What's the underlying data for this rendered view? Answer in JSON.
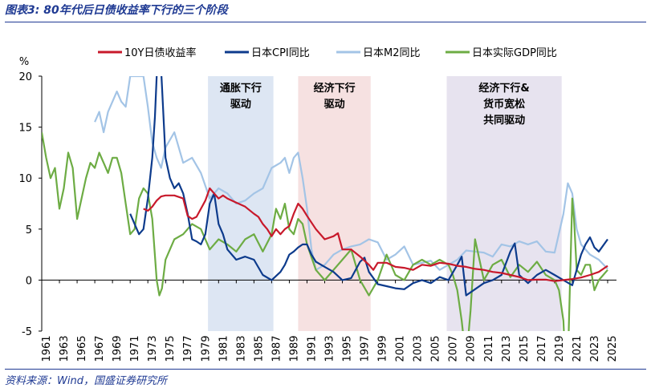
{
  "header": {
    "title": "图表3:  80年代后日债收益率下行的三个阶段"
  },
  "footer": {
    "source": "资料来源：Wind，国盛证券研究所"
  },
  "chart_data": {
    "type": "line",
    "ylabel": "%",
    "ylim": [
      -5,
      20
    ],
    "yticks": [
      -5,
      0,
      5,
      10,
      15,
      20
    ],
    "xlim": [
      1961,
      2026
    ],
    "xticks": [
      1961,
      1963,
      1965,
      1967,
      1969,
      1971,
      1973,
      1975,
      1977,
      1979,
      1981,
      1983,
      1985,
      1987,
      1989,
      1991,
      1993,
      1995,
      1997,
      1999,
      2001,
      2003,
      2005,
      2007,
      2009,
      2011,
      2013,
      2015,
      2017,
      2019,
      2021,
      2023,
      2025
    ],
    "legend_position": "top",
    "grid": false,
    "shaded_periods": [
      {
        "label_lines": [
          "通胀下行",
          "驱动"
        ],
        "start": 1979.8,
        "end": 1987.2,
        "color": "#dde6f3"
      },
      {
        "label_lines": [
          "经济下行",
          "驱动"
        ],
        "start": 1990.0,
        "end": 1998.2,
        "color": "#f6e1e1"
      },
      {
        "label_lines": [
          "经济下行&",
          "货币宽松",
          "共同驱动"
        ],
        "start": 2006.8,
        "end": 2019.8,
        "color": "#e7e3ef"
      }
    ],
    "series": [
      {
        "name": "10Y日债收益率",
        "color": "#c8192b",
        "x": [
          1972.5,
          1973,
          1973.5,
          1974,
          1974.5,
          1975,
          1976,
          1977,
          1977.5,
          1978,
          1978.5,
          1979,
          1979.5,
          1980,
          1980.5,
          1981,
          1981.5,
          1982,
          1983,
          1984,
          1985,
          1985.5,
          1986,
          1986.5,
          1987,
          1987.5,
          1988,
          1988.5,
          1989,
          1989.5,
          1990,
          1990.5,
          1991,
          1992,
          1993,
          1994,
          1994.5,
          1995,
          1996,
          1997,
          1998,
          1998.5,
          1999,
          2000,
          2001,
          2002,
          2003,
          2004,
          2005,
          2006,
          2007,
          2008,
          2009,
          2010,
          2011,
          2012,
          2013,
          2014,
          2015,
          2016,
          2017,
          2018,
          2019,
          2020,
          2021,
          2022,
          2023,
          2024,
          2025
        ],
        "y": [
          7.0,
          6.8,
          7.2,
          7.8,
          8.2,
          8.3,
          8.3,
          8.0,
          6.3,
          6.0,
          6.2,
          7.0,
          7.8,
          9.0,
          8.5,
          8.0,
          8.3,
          8.0,
          7.6,
          7.2,
          6.5,
          6.2,
          5.5,
          5.0,
          4.3,
          5.0,
          4.5,
          5.0,
          5.3,
          6.5,
          7.5,
          7.0,
          6.3,
          5.0,
          4.0,
          4.3,
          4.6,
          3.0,
          3.0,
          2.3,
          1.5,
          1.0,
          1.7,
          1.7,
          1.3,
          1.2,
          1.0,
          1.5,
          1.4,
          1.7,
          1.6,
          1.4,
          1.3,
          1.1,
          1.0,
          0.8,
          0.7,
          0.5,
          0.3,
          0.0,
          0.05,
          0.05,
          -0.1,
          0.0,
          0.1,
          0.25,
          0.5,
          0.8,
          1.4
        ]
      },
      {
        "name": "日本CPI同比",
        "color": "#0d3b8c",
        "x": [
          1971,
          1971.5,
          1972,
          1972.5,
          1973,
          1973.5,
          1973.8,
          1974,
          1974.3,
          1974.6,
          1975,
          1975.5,
          1976,
          1976.5,
          1977,
          1977.5,
          1978,
          1978.5,
          1979,
          1979.5,
          1980,
          1980.5,
          1981,
          1981.5,
          1982,
          1983,
          1984,
          1985,
          1986,
          1987,
          1988,
          1988.5,
          1989,
          1989.5,
          1990,
          1990.5,
          1991,
          1991.5,
          1992,
          1993,
          1994,
          1995,
          1996,
          1997,
          1997.5,
          1998,
          1999,
          2000,
          2001,
          2002,
          2003,
          2004,
          2005,
          2006,
          2007,
          2008,
          2008.5,
          2009,
          2010,
          2011,
          2012,
          2013,
          2014,
          2014.5,
          2015,
          2016,
          2017,
          2018,
          2019,
          2020,
          2021,
          2022,
          2022.5,
          2023,
          2023.5,
          2024,
          2025
        ],
        "y": [
          6.5,
          5.5,
          4.5,
          5.0,
          8.0,
          12.0,
          16.0,
          20.0,
          24.0,
          19.0,
          12.0,
          10.0,
          9.0,
          9.5,
          8.5,
          6.5,
          4.0,
          3.8,
          3.5,
          4.5,
          7.5,
          8.5,
          5.5,
          4.5,
          3.0,
          2.0,
          2.3,
          2.0,
          0.5,
          0.0,
          0.8,
          1.5,
          2.5,
          2.8,
          3.2,
          3.5,
          3.5,
          2.5,
          1.8,
          1.3,
          0.8,
          0.0,
          0.2,
          1.8,
          2.2,
          0.8,
          -0.4,
          -0.6,
          -0.8,
          -0.9,
          -0.3,
          0.0,
          -0.3,
          0.3,
          0.0,
          1.5,
          2.3,
          -1.5,
          -0.9,
          -0.3,
          0.0,
          0.5,
          2.8,
          3.6,
          0.5,
          -0.3,
          0.5,
          1.0,
          0.5,
          0.0,
          -0.5,
          2.5,
          3.5,
          4.2,
          3.2,
          2.8,
          4.0
        ]
      },
      {
        "name": "日本M2同比",
        "color": "#a3c4e6",
        "x": [
          1967,
          1967.5,
          1968,
          1968.5,
          1969,
          1969.5,
          1970,
          1970.5,
          1971,
          1971.5,
          1972,
          1972.5,
          1973,
          1973.5,
          1974,
          1974.5,
          1975,
          1976,
          1977,
          1978,
          1979,
          1980,
          1981,
          1982,
          1983,
          1984,
          1985,
          1986,
          1987,
          1988,
          1988.5,
          1989,
          1989.5,
          1990,
          1990.5,
          1991,
          1991.5,
          1992,
          1993,
          1994,
          1995,
          1996,
          1997,
          1998,
          1999,
          2000,
          2001,
          2002,
          2003,
          2004,
          2005,
          2006,
          2007,
          2008,
          2009,
          2010,
          2011,
          2012,
          2013,
          2014,
          2015,
          2016,
          2017,
          2018,
          2019,
          2020,
          2020.5,
          2021,
          2021.5,
          2022,
          2023,
          2024,
          2025
        ],
        "y": [
          15.5,
          16.5,
          14.5,
          16.5,
          17.5,
          18.5,
          17.5,
          17.0,
          20.0,
          20.0,
          20.0,
          20.0,
          17.0,
          13.5,
          12.0,
          11.0,
          13.0,
          14.5,
          11.5,
          12.0,
          10.5,
          8.0,
          9.0,
          8.5,
          7.5,
          7.8,
          8.5,
          9.0,
          11.0,
          11.5,
          12.0,
          10.5,
          12.0,
          12.5,
          10.0,
          7.0,
          3.0,
          1.0,
          1.5,
          2.5,
          3.0,
          3.3,
          3.5,
          4.0,
          3.7,
          2.0,
          2.5,
          3.3,
          1.5,
          1.7,
          1.9,
          1.0,
          1.5,
          2.0,
          2.9,
          2.8,
          2.7,
          2.3,
          3.5,
          3.3,
          3.8,
          3.5,
          3.8,
          2.8,
          2.7,
          6.5,
          9.5,
          8.5,
          5.0,
          3.5,
          2.5,
          2.0,
          1.1
        ]
      },
      {
        "name": "日本实际GDP同比",
        "color": "#6dac44",
        "x": [
          1961,
          1961.5,
          1962,
          1962.5,
          1963,
          1963.5,
          1964,
          1964.5,
          1965,
          1965.5,
          1966,
          1966.5,
          1967,
          1967.5,
          1968,
          1968.5,
          1969,
          1969.5,
          1970,
          1970.5,
          1971,
          1971.5,
          1972,
          1972.5,
          1973,
          1973.5,
          1974,
          1974.3,
          1974.6,
          1975,
          1975.5,
          1976,
          1977,
          1978,
          1979,
          1980,
          1981,
          1982,
          1983,
          1984,
          1985,
          1986,
          1987,
          1987.5,
          1988,
          1988.5,
          1989,
          1989.5,
          1990,
          1990.5,
          1991,
          1992,
          1993,
          1994,
          1995,
          1996,
          1997,
          1998,
          1999,
          2000,
          2001,
          2002,
          2003,
          2004,
          2005,
          2006,
          2007,
          2007.5,
          2008,
          2008.5,
          2009,
          2009.5,
          2010,
          2011,
          2012,
          2013,
          2014,
          2015,
          2016,
          2017,
          2018,
          2019,
          2019.5,
          2020,
          2020.3,
          2020.6,
          2021,
          2021.2,
          2021.5,
          2022,
          2022.5,
          2023,
          2023.5,
          2024,
          2025
        ],
        "y": [
          14.5,
          12.0,
          10.0,
          11.0,
          7.0,
          9.0,
          12.5,
          11.0,
          6.0,
          8.0,
          10.0,
          11.5,
          11.0,
          12.5,
          11.5,
          10.5,
          12.0,
          12.0,
          10.5,
          7.5,
          4.5,
          5.0,
          8.0,
          9.0,
          8.5,
          6.0,
          0.0,
          -1.5,
          -0.8,
          2.0,
          3.0,
          4.0,
          4.5,
          5.5,
          5.0,
          3.0,
          4.0,
          3.5,
          2.8,
          4.0,
          4.5,
          2.8,
          4.5,
          7.0,
          6.0,
          7.5,
          5.0,
          4.5,
          6.0,
          5.5,
          3.5,
          1.0,
          0.0,
          1.0,
          2.0,
          3.0,
          0.0,
          -1.5,
          0.0,
          2.5,
          0.5,
          0.0,
          1.5,
          2.0,
          1.5,
          2.0,
          1.5,
          0.5,
          -1.0,
          -4.0,
          -8.0,
          -3.0,
          4.0,
          0.0,
          1.5,
          2.0,
          0.3,
          1.5,
          0.8,
          1.8,
          0.5,
          0.0,
          -1.0,
          -4.0,
          -10.0,
          -5.0,
          8.0,
          6.0,
          1.0,
          0.5,
          1.5,
          1.5,
          -1.0,
          0.0,
          1.0
        ]
      }
    ]
  }
}
